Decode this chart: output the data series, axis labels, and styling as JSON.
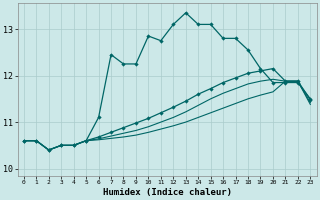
{
  "xlabel": "Humidex (Indice chaleur)",
  "background_color": "#cce8e8",
  "grid_color_major": "#aacccc",
  "grid_color_minor": "#bbdddd",
  "line_color": "#006666",
  "xlim": [
    -0.5,
    23.5
  ],
  "ylim": [
    9.85,
    13.55
  ],
  "yticks": [
    10,
    11,
    12,
    13
  ],
  "xtick_labels": [
    "0",
    "1",
    "2",
    "3",
    "4",
    "5",
    "6",
    "7",
    "8",
    "9",
    "10",
    "11",
    "12",
    "13",
    "14",
    "15",
    "16",
    "17",
    "18",
    "19",
    "20",
    "21",
    "22",
    "23"
  ],
  "series1_x": [
    0,
    1,
    2,
    3,
    4,
    5,
    6,
    7,
    8,
    9,
    10,
    11,
    12,
    13,
    14,
    15,
    16,
    17,
    18,
    19,
    20,
    21,
    22,
    23
  ],
  "series1_y": [
    10.6,
    10.6,
    10.4,
    10.5,
    10.5,
    10.6,
    11.1,
    12.45,
    12.25,
    12.25,
    12.85,
    12.75,
    13.1,
    13.35,
    13.1,
    13.1,
    12.8,
    12.8,
    12.55,
    12.15,
    11.85,
    11.85,
    11.85,
    11.5
  ],
  "series2_x": [
    0,
    1,
    2,
    3,
    4,
    5,
    6,
    7,
    8,
    9,
    10,
    11,
    12,
    13,
    14,
    15,
    16,
    17,
    18,
    19,
    20,
    21,
    22,
    23
  ],
  "series2_y": [
    10.6,
    10.6,
    10.4,
    10.5,
    10.5,
    10.6,
    10.68,
    10.78,
    10.88,
    10.98,
    11.08,
    11.2,
    11.32,
    11.45,
    11.6,
    11.72,
    11.85,
    11.95,
    12.05,
    12.1,
    12.15,
    11.88,
    11.88,
    11.48
  ],
  "series3_x": [
    0,
    1,
    2,
    3,
    4,
    5,
    6,
    7,
    8,
    9,
    10,
    11,
    12,
    13,
    14,
    15,
    16,
    17,
    18,
    19,
    20,
    21,
    22,
    23
  ],
  "series3_y": [
    10.6,
    10.6,
    10.4,
    10.5,
    10.5,
    10.6,
    10.64,
    10.7,
    10.76,
    10.82,
    10.9,
    11.0,
    11.1,
    11.22,
    11.36,
    11.5,
    11.62,
    11.72,
    11.82,
    11.88,
    11.92,
    11.88,
    11.88,
    11.42
  ],
  "series4_x": [
    0,
    1,
    2,
    3,
    4,
    5,
    6,
    7,
    8,
    9,
    10,
    11,
    12,
    13,
    14,
    15,
    16,
    17,
    18,
    19,
    20,
    21,
    22,
    23
  ],
  "series4_y": [
    10.6,
    10.6,
    10.4,
    10.5,
    10.5,
    10.6,
    10.62,
    10.65,
    10.68,
    10.72,
    10.78,
    10.85,
    10.92,
    11.0,
    11.1,
    11.2,
    11.3,
    11.4,
    11.5,
    11.58,
    11.65,
    11.88,
    11.88,
    11.38
  ]
}
